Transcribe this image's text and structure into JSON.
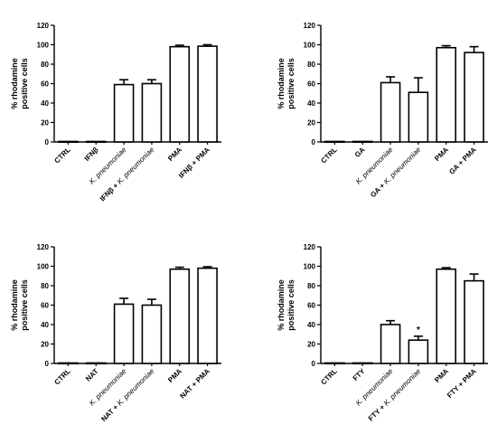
{
  "chart_data": [
    {
      "type": "bar",
      "ylabel": [
        "% rhodamine",
        "positive cells"
      ],
      "ylim": [
        0,
        120
      ],
      "yticks": [
        "0",
        "20",
        "40",
        "60",
        "80",
        "100",
        "120"
      ],
      "categories": [
        [
          {
            "t": "CTRL"
          }
        ],
        [
          {
            "t": "IFNβ"
          }
        ],
        [
          {
            "t": "K. pneumoniae",
            "i": true
          }
        ],
        [
          {
            "t": "IFNβ + "
          },
          {
            "t": "K. pneumoniae",
            "i": true
          }
        ],
        [
          {
            "t": "PMA"
          }
        ],
        [
          {
            "t": "IFNβ + PMA"
          }
        ]
      ],
      "values": [
        0.5,
        0.5,
        59,
        60,
        98,
        98.5
      ],
      "errors": [
        0,
        0,
        5,
        4,
        1.5,
        1.5
      ],
      "annotations": []
    },
    {
      "type": "bar",
      "ylabel": [
        "% rhodamine",
        "positive cells"
      ],
      "ylim": [
        0,
        120
      ],
      "yticks": [
        "0",
        "20",
        "40",
        "60",
        "80",
        "100",
        "120"
      ],
      "categories": [
        [
          {
            "t": "CTRL"
          }
        ],
        [
          {
            "t": "GA"
          }
        ],
        [
          {
            "t": "K. pneumoniae",
            "i": true
          }
        ],
        [
          {
            "t": "GA + "
          },
          {
            "t": "K. pneumoniae",
            "i": true
          }
        ],
        [
          {
            "t": "PMA"
          }
        ],
        [
          {
            "t": "GA + PMA"
          }
        ]
      ],
      "values": [
        0.5,
        0.5,
        61,
        51,
        97,
        92
      ],
      "errors": [
        0,
        0,
        6,
        15,
        2,
        6
      ],
      "annotations": []
    },
    {
      "type": "bar",
      "ylabel": [
        "% rhodamine",
        "positive cells"
      ],
      "ylim": [
        0,
        120
      ],
      "yticks": [
        "0",
        "20",
        "40",
        "60",
        "80",
        "100",
        "120"
      ],
      "categories": [
        [
          {
            "t": "CTRL"
          }
        ],
        [
          {
            "t": "NAT"
          }
        ],
        [
          {
            "t": "K. pneumoniae",
            "i": true
          }
        ],
        [
          {
            "t": "NAT + "
          },
          {
            "t": "K. pneumoniae",
            "i": true
          }
        ],
        [
          {
            "t": "PMA"
          }
        ],
        [
          {
            "t": "NAT + PMA"
          }
        ]
      ],
      "values": [
        0.5,
        0.5,
        61,
        60,
        97,
        98
      ],
      "errors": [
        0,
        0,
        6,
        6,
        2,
        1.5
      ],
      "annotations": []
    },
    {
      "type": "bar",
      "ylabel": [
        "% rhodamine",
        "positive cells"
      ],
      "ylim": [
        0,
        120
      ],
      "yticks": [
        "0",
        "20",
        "40",
        "60",
        "80",
        "100",
        "120"
      ],
      "categories": [
        [
          {
            "t": "CTRL"
          }
        ],
        [
          {
            "t": "FTY"
          }
        ],
        [
          {
            "t": "K. pneumoniae",
            "i": true
          }
        ],
        [
          {
            "t": "FTY + "
          },
          {
            "t": "K. pneumoniae",
            "i": true
          }
        ],
        [
          {
            "t": "PMA"
          }
        ],
        [
          {
            "t": "FTY + PMA"
          }
        ]
      ],
      "values": [
        0.5,
        0.5,
        40,
        24,
        97,
        85
      ],
      "errors": [
        0,
        0,
        4,
        4,
        1.5,
        7
      ],
      "annotations": [
        {
          "index": 3,
          "text": "*"
        }
      ]
    }
  ]
}
